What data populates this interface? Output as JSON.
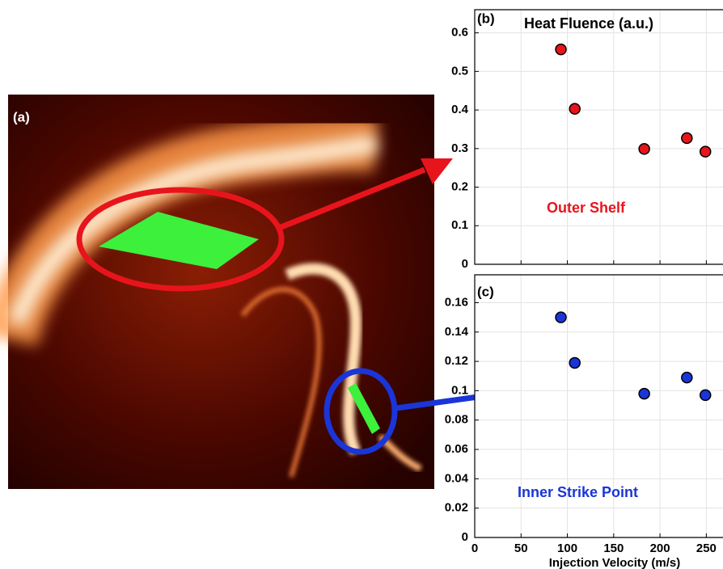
{
  "image_panel": {
    "label": "(a)"
  },
  "chart_data": [
    {
      "type": "scatter",
      "panel_label": "(b)",
      "title": "Heat Fluence (a.u.)",
      "annotation": "Outer Shelf",
      "series": [
        {
          "color": "#e8141c",
          "x": [
            93,
            108,
            183,
            229,
            249
          ],
          "values": [
            0.557,
            0.403,
            0.299,
            0.327,
            0.292
          ]
        }
      ],
      "xlim": [
        0,
        268
      ],
      "xticks": [
        0,
        50,
        100,
        150,
        200,
        250
      ],
      "show_xtick_labels": false,
      "ylim": [
        0,
        0.66
      ],
      "yticks": [
        0,
        0.1,
        0.2,
        0.3,
        0.4,
        0.5,
        0.6
      ],
      "grid": true
    },
    {
      "type": "scatter",
      "panel_label": "(c)",
      "annotation": "Inner Strike Point",
      "x_label": "Injection Velocity (m/s)",
      "series": [
        {
          "color": "#1a35d8",
          "x": [
            93,
            108,
            183,
            229,
            249
          ],
          "values": [
            0.15,
            0.119,
            0.098,
            0.109,
            0.097
          ]
        }
      ],
      "xlim": [
        0,
        268
      ],
      "xticks": [
        0,
        50,
        100,
        150,
        200,
        250
      ],
      "show_xtick_labels": true,
      "ylim": [
        0,
        0.179
      ],
      "yticks": [
        0,
        0.02,
        0.04,
        0.06,
        0.08,
        0.1,
        0.12,
        0.14,
        0.16
      ],
      "grid": true
    }
  ]
}
